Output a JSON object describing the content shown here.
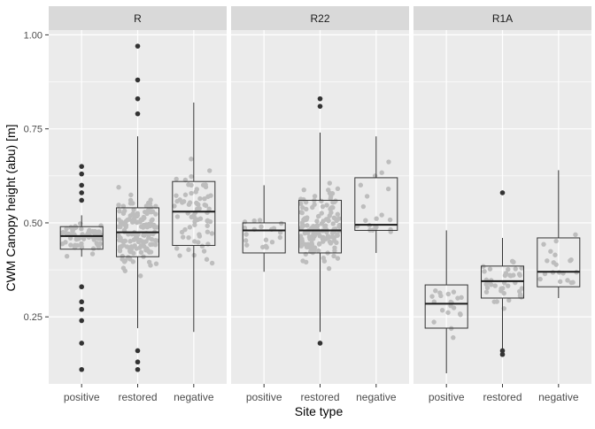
{
  "chart_data": {
    "type": "boxplot",
    "facet_variable_values": [
      "R",
      "R22",
      "R1A"
    ],
    "xlabel": "Site type",
    "ylabel": "CWM Canopy height (abu) [m]",
    "categories": [
      "positive",
      "restored",
      "negative"
    ],
    "yticks": [
      0.25,
      0.5,
      0.75,
      1.0
    ],
    "ytick_labels": [
      "0.25",
      "0.50",
      "0.75",
      "1.00"
    ],
    "ylim": [
      0.07,
      1.04
    ],
    "grid": true,
    "colors": {
      "panel_bg": "#ebebeb",
      "strip_bg": "#d9d9d9",
      "grid": "#ffffff",
      "points": "#bdbdbd",
      "box": "#333333",
      "outlier": "#333333"
    },
    "panels": [
      {
        "name": "R",
        "boxes": [
          {
            "category": "positive",
            "min": 0.41,
            "q1": 0.43,
            "median": 0.465,
            "q3": 0.49,
            "max": 0.52,
            "outliers": [
              0.65,
              0.63,
              0.6,
              0.58,
              0.56,
              0.33,
              0.29,
              0.27,
              0.24,
              0.18,
              0.11
            ]
          },
          {
            "category": "restored",
            "min": 0.22,
            "q1": 0.41,
            "median": 0.475,
            "q3": 0.54,
            "max": 0.73,
            "outliers": [
              0.97,
              0.88,
              0.83,
              0.79,
              0.16,
              0.13,
              0.11
            ]
          },
          {
            "category": "negative",
            "min": 0.21,
            "q1": 0.44,
            "median": 0.53,
            "q3": 0.61,
            "max": 0.82,
            "outliers": []
          }
        ]
      },
      {
        "name": "R22",
        "boxes": [
          {
            "category": "positive",
            "min": 0.37,
            "q1": 0.42,
            "median": 0.48,
            "q3": 0.5,
            "max": 0.6,
            "outliers": []
          },
          {
            "category": "restored",
            "min": 0.21,
            "q1": 0.42,
            "median": 0.48,
            "q3": 0.56,
            "max": 0.74,
            "outliers": [
              0.83,
              0.81,
              0.18
            ]
          },
          {
            "category": "negative",
            "min": 0.42,
            "q1": 0.48,
            "median": 0.495,
            "q3": 0.62,
            "max": 0.73,
            "outliers": []
          }
        ]
      },
      {
        "name": "R1A",
        "boxes": [
          {
            "category": "positive",
            "min": 0.1,
            "q1": 0.22,
            "median": 0.285,
            "q3": 0.335,
            "max": 0.48,
            "outliers": []
          },
          {
            "category": "restored",
            "min": 0.16,
            "q1": 0.3,
            "median": 0.345,
            "q3": 0.385,
            "max": 0.46,
            "outliers": [
              0.58,
              0.16,
              0.15
            ]
          },
          {
            "category": "negative",
            "min": 0.3,
            "q1": 0.33,
            "median": 0.37,
            "q3": 0.46,
            "max": 0.64,
            "outliers": []
          }
        ]
      }
    ]
  }
}
